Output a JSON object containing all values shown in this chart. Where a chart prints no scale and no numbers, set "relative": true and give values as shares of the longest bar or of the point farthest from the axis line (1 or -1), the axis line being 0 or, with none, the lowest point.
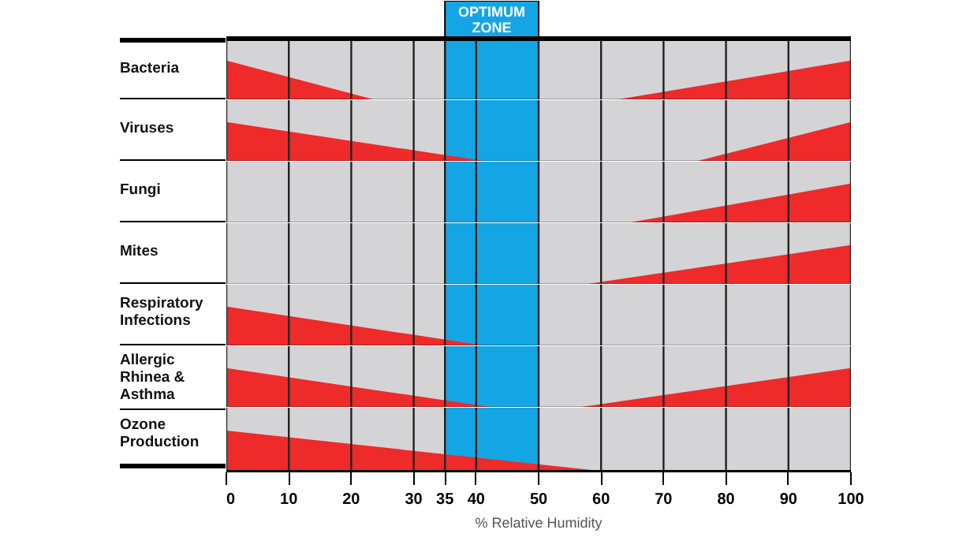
{
  "chart_data": [
    {
      "type": "area",
      "ylabel": "Bacteria",
      "relative": true,
      "xlim": [
        0,
        100
      ],
      "xticks": [
        0,
        10,
        20,
        30,
        35,
        40,
        50,
        60,
        70,
        80,
        90,
        100
      ],
      "grid": "x",
      "tick_labels": false,
      "bands": [
        {
          "axis": "x",
          "from": 35,
          "to": 50,
          "label": "OPTIMUM ZONE",
          "color": "#14a6e4"
        }
      ],
      "series": [
        {
          "color": "#ee2a2a",
          "x": [
            0,
            24
          ],
          "values": [
            1,
            0
          ]
        },
        {
          "color": "#ee2a2a",
          "x": [
            62,
            100
          ],
          "values": [
            0,
            1
          ]
        }
      ]
    },
    {
      "type": "area",
      "ylabel": "Viruses",
      "relative": true,
      "xlim": [
        0,
        100
      ],
      "xticks": [
        0,
        10,
        20,
        30,
        35,
        40,
        50,
        60,
        70,
        80,
        90,
        100
      ],
      "grid": "x",
      "tick_labels": false,
      "bands": [
        {
          "axis": "x",
          "from": 35,
          "to": 50,
          "color": "#14a6e4"
        }
      ],
      "series": [
        {
          "color": "#ee2a2a",
          "x": [
            0,
            42
          ],
          "values": [
            1,
            0
          ]
        },
        {
          "color": "#ee2a2a",
          "x": [
            75,
            100
          ],
          "values": [
            0,
            1
          ]
        }
      ]
    },
    {
      "type": "area",
      "ylabel": "Fungi",
      "relative": true,
      "xlim": [
        0,
        100
      ],
      "xticks": [
        0,
        10,
        20,
        30,
        35,
        40,
        50,
        60,
        70,
        80,
        90,
        100
      ],
      "grid": "x",
      "tick_labels": false,
      "bands": [
        {
          "axis": "x",
          "from": 35,
          "to": 50,
          "color": "#14a6e4"
        }
      ],
      "series": [
        {
          "color": "#ee2a2a",
          "x": [
            64,
            100
          ],
          "values": [
            0,
            1
          ]
        }
      ]
    },
    {
      "type": "area",
      "ylabel": "Mites",
      "relative": true,
      "xlim": [
        0,
        100
      ],
      "xticks": [
        0,
        10,
        20,
        30,
        35,
        40,
        50,
        60,
        70,
        80,
        90,
        100
      ],
      "grid": "x",
      "tick_labels": false,
      "bands": [
        {
          "axis": "x",
          "from": 35,
          "to": 50,
          "color": "#14a6e4"
        }
      ],
      "series": [
        {
          "color": "#ee2a2a",
          "x": [
            57,
            100
          ],
          "values": [
            0,
            1
          ]
        }
      ]
    },
    {
      "type": "area",
      "ylabel": "Respiratory Infections",
      "relative": true,
      "xlim": [
        0,
        100
      ],
      "xticks": [
        0,
        10,
        20,
        30,
        35,
        40,
        50,
        60,
        70,
        80,
        90,
        100
      ],
      "grid": "x",
      "tick_labels": false,
      "bands": [
        {
          "axis": "x",
          "from": 35,
          "to": 50,
          "color": "#14a6e4"
        }
      ],
      "series": [
        {
          "color": "#ee2a2a",
          "x": [
            0,
            42
          ],
          "values": [
            1,
            0
          ]
        }
      ]
    },
    {
      "type": "area",
      "ylabel": "Allergic Rhinea & Asthma",
      "relative": true,
      "xlim": [
        0,
        100
      ],
      "xticks": [
        0,
        10,
        20,
        30,
        35,
        40,
        50,
        60,
        70,
        80,
        90,
        100
      ],
      "grid": "x",
      "tick_labels": false,
      "bands": [
        {
          "axis": "x",
          "from": 35,
          "to": 50,
          "color": "#14a6e4"
        }
      ],
      "series": [
        {
          "color": "#ee2a2a",
          "x": [
            0,
            43
          ],
          "values": [
            1,
            0
          ]
        },
        {
          "color": "#ee2a2a",
          "x": [
            56,
            100
          ],
          "values": [
            0,
            1
          ]
        }
      ]
    },
    {
      "type": "area",
      "ylabel": "Ozone Production",
      "xlabel": "% Relative Humidity",
      "relative": true,
      "xlim": [
        0,
        100
      ],
      "xticks": [
        0,
        10,
        20,
        30,
        35,
        40,
        50,
        60,
        70,
        80,
        90,
        100
      ],
      "grid": "x",
      "tick_labels": "x",
      "bands": [
        {
          "axis": "x",
          "from": 35,
          "to": 50,
          "color": "#14a6e4"
        }
      ],
      "series": [
        {
          "color": "#ee2a2a",
          "x": [
            0,
            62
          ],
          "values": [
            1,
            0
          ]
        }
      ]
    }
  ]
}
